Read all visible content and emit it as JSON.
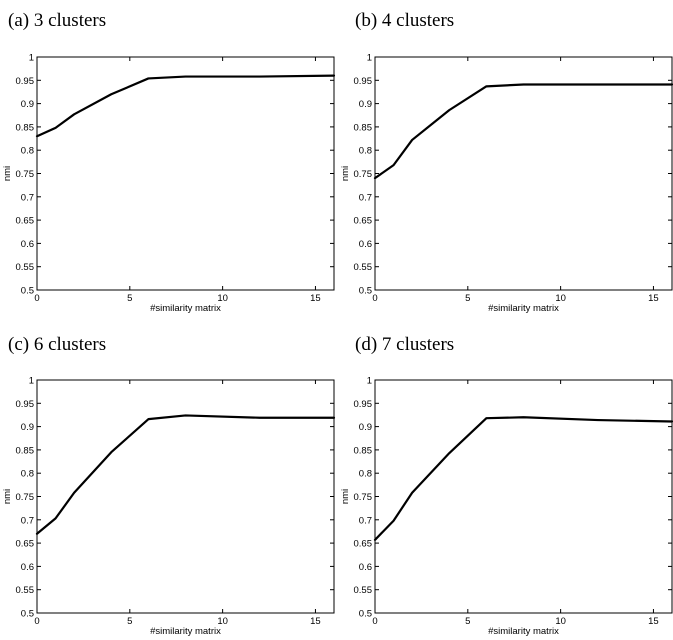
{
  "chart_data": [
    {
      "type": "line",
      "title": "(a) 3 clusters",
      "xlabel": "#similarity matrix",
      "ylabel": "nmi",
      "xlim": [
        0,
        16
      ],
      "ylim": [
        0.5,
        1
      ],
      "xticks": [
        "0",
        "5",
        "10",
        "15"
      ],
      "yticks": [
        "0.5",
        "0.55",
        "0.6",
        "0.65",
        "0.7",
        "0.75",
        "0.8",
        "0.85",
        "0.9",
        "0.95",
        "1"
      ],
      "grid": false,
      "x": [
        0,
        1,
        2,
        4,
        6,
        8,
        12,
        16
      ],
      "series": [
        {
          "values": [
            0.83,
            0.848,
            0.877,
            0.92,
            0.954,
            0.958,
            0.958,
            0.96
          ]
        }
      ]
    },
    {
      "type": "line",
      "title": "(b) 4 clusters",
      "xlabel": "#similarity matrix",
      "ylabel": "nmi",
      "xlim": [
        0,
        16
      ],
      "ylim": [
        0.5,
        1
      ],
      "xticks": [
        "0",
        "5",
        "10",
        "15"
      ],
      "yticks": [
        "0.5",
        "0.55",
        "0.6",
        "0.65",
        "0.7",
        "0.75",
        "0.8",
        "0.85",
        "0.9",
        "0.95",
        "1"
      ],
      "grid": false,
      "x": [
        0,
        1,
        2,
        4,
        6,
        8,
        12,
        16
      ],
      "series": [
        {
          "values": [
            0.74,
            0.768,
            0.822,
            0.886,
            0.937,
            0.941,
            0.941,
            0.941
          ]
        }
      ]
    },
    {
      "type": "line",
      "title": "(c) 6 clusters",
      "xlabel": "#similarity matrix",
      "ylabel": "nmi",
      "xlim": [
        0,
        16
      ],
      "ylim": [
        0.5,
        1
      ],
      "xticks": [
        "0",
        "5",
        "10",
        "15"
      ],
      "yticks": [
        "0.5",
        "0.55",
        "0.6",
        "0.65",
        "0.7",
        "0.75",
        "0.8",
        "0.85",
        "0.9",
        "0.95",
        "1"
      ],
      "grid": false,
      "x": [
        0,
        1,
        2,
        4,
        6,
        8,
        12,
        16
      ],
      "series": [
        {
          "values": [
            0.67,
            0.703,
            0.758,
            0.845,
            0.916,
            0.924,
            0.919,
            0.919
          ]
        }
      ]
    },
    {
      "type": "line",
      "title": "(d) 7 clusters",
      "xlabel": "#similarity matrix",
      "ylabel": "nmi",
      "xlim": [
        0,
        16
      ],
      "ylim": [
        0.5,
        1
      ],
      "xticks": [
        "0",
        "5",
        "10",
        "15"
      ],
      "yticks": [
        "0.5",
        "0.55",
        "0.6",
        "0.65",
        "0.7",
        "0.75",
        "0.8",
        "0.85",
        "0.9",
        "0.95",
        "1"
      ],
      "grid": false,
      "x": [
        0,
        1,
        2,
        4,
        6,
        8,
        12,
        16
      ],
      "series": [
        {
          "values": [
            0.657,
            0.698,
            0.758,
            0.843,
            0.918,
            0.92,
            0.914,
            0.911
          ]
        }
      ]
    }
  ]
}
